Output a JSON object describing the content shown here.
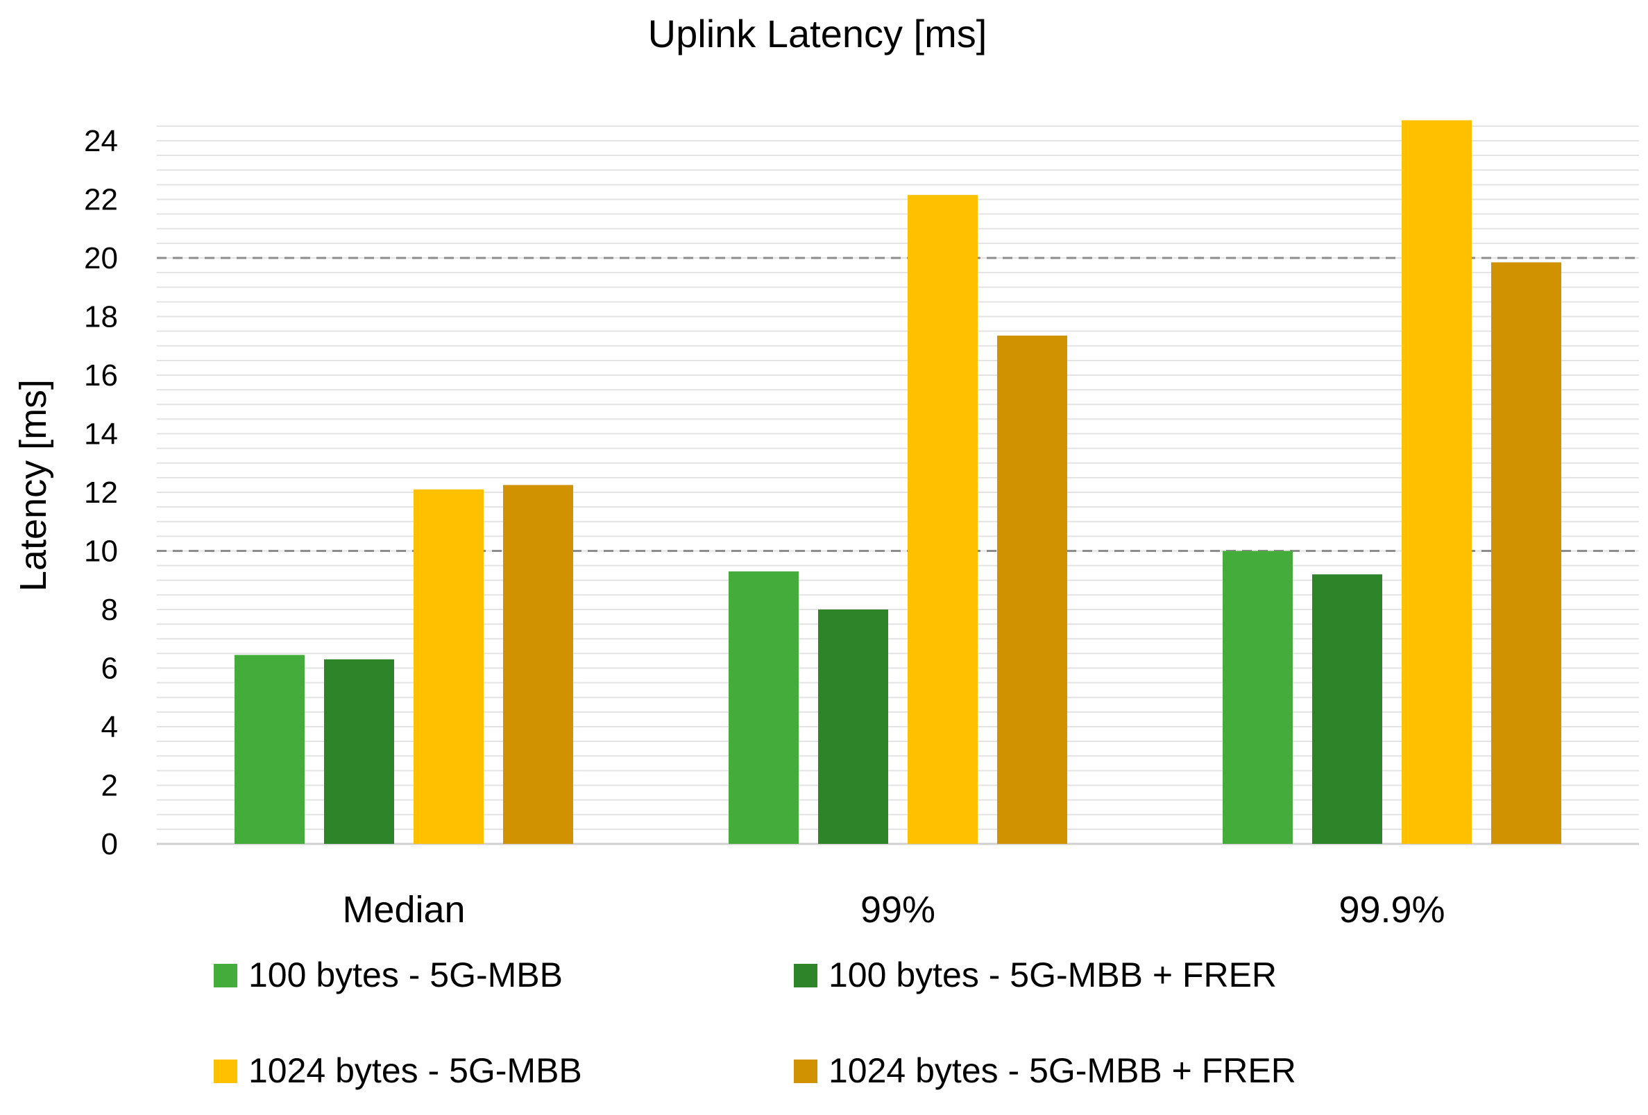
{
  "chart_data": {
    "type": "bar",
    "title": "Uplink Latency [ms]",
    "xlabel": "",
    "ylabel": "Latency [ms]",
    "ylim": [
      0,
      24.9
    ],
    "yticks": [
      0,
      2,
      4,
      6,
      8,
      10,
      12,
      14,
      16,
      18,
      20,
      22,
      24
    ],
    "minor_gridlines": true,
    "reference_lines": [
      10,
      20
    ],
    "categories": [
      "Median",
      "99%",
      "99.9%"
    ],
    "series": [
      {
        "name": "100 bytes - 5G-MBB",
        "color": "#43ac3a",
        "values": [
          6.45,
          9.3,
          10.0
        ]
      },
      {
        "name": "100 bytes - 5G-MBB + FRER",
        "color": "#2e8428",
        "values": [
          6.3,
          8.0,
          9.2
        ]
      },
      {
        "name": "1024 bytes - 5G-MBB",
        "color": "#ffc000",
        "values": [
          12.1,
          22.15,
          24.7
        ]
      },
      {
        "name": "1024 bytes - 5G-MBB + FRER",
        "color": "#d09200",
        "values": [
          12.25,
          17.35,
          19.85
        ]
      }
    ],
    "legend_position": "bottom"
  }
}
